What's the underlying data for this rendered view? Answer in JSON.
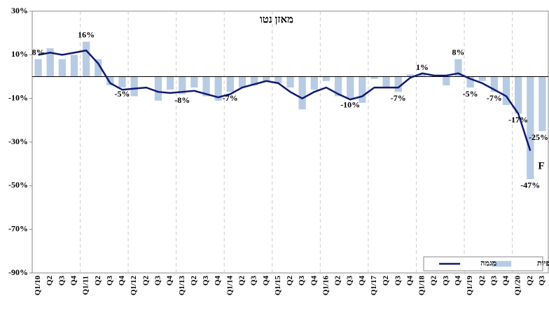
{
  "chart_data": {
    "type": "combo",
    "title": "מאזן נטו",
    "categories": [
      "Q1/10",
      "Q2",
      "Q3",
      "Q4",
      "Q1/11",
      "Q2",
      "Q3",
      "Q4",
      "Q1/12",
      "Q2",
      "Q3",
      "Q4",
      "Q1/13",
      "Q2",
      "Q3",
      "Q4",
      "Q1/14",
      "Q2",
      "Q3",
      "Q4",
      "Q1/15",
      "Q2",
      "Q3",
      "Q4",
      "Q1/16",
      "Q2",
      "Q3",
      "Q4",
      "Q1/17",
      "Q2",
      "Q3",
      "Q4",
      "Q1/18",
      "Q2",
      "Q3",
      "Q4",
      "Q1/19",
      "Q2",
      "Q3",
      "Q4",
      "Q1/20",
      "Q2",
      "Q3"
    ],
    "series": [
      {
        "name": "תצפיות",
        "type": "bar",
        "color": "#b7cbe4",
        "values": [
          8,
          13,
          8,
          10,
          16,
          8,
          -4,
          -5,
          -9,
          0,
          -11,
          -6,
          -8,
          -5,
          -9,
          -11,
          -7,
          -5,
          -4,
          -2,
          -3,
          -5,
          -15,
          -6,
          -2,
          -9,
          -10,
          -12,
          -1,
          -5,
          -7,
          1,
          1,
          0,
          -4,
          8,
          -5,
          -2,
          -7,
          -13,
          -17,
          -47,
          -25
        ],
        "value_labels": [
          "8%",
          null,
          null,
          null,
          "16%",
          null,
          null,
          "-5%",
          null,
          null,
          null,
          null,
          "-8%",
          null,
          null,
          null,
          "-7%",
          null,
          null,
          null,
          null,
          null,
          null,
          null,
          null,
          null,
          "-10%",
          null,
          null,
          null,
          "-7%",
          null,
          "1%",
          null,
          null,
          "8%",
          "-5%",
          null,
          "-7%",
          null,
          "-17%",
          "-47%",
          "-25%"
        ]
      },
      {
        "name": "מגמה",
        "type": "line",
        "color": "#0f1a72",
        "values": [
          10,
          11,
          10,
          11,
          12,
          6,
          -3,
          -6,
          -5.5,
          -5,
          -7,
          -7.5,
          -7,
          -6.5,
          -8,
          -9.5,
          -8,
          -5,
          -3.5,
          -2,
          -3,
          -7,
          -10,
          -7,
          -5,
          -8,
          -10.5,
          -9,
          -5,
          -5,
          -5,
          -0.5,
          1.5,
          0.5,
          0.5,
          1.5,
          -1,
          -3,
          -6,
          -9,
          -17,
          -34,
          null
        ]
      }
    ],
    "annotations": [
      "F"
    ],
    "ylim": [
      -90,
      30
    ],
    "yticks": [
      {
        "value": -90,
        "label": "-90%"
      },
      {
        "value": -70,
        "label": "-70%"
      },
      {
        "value": -50,
        "label": "-50%"
      },
      {
        "value": -30,
        "label": "-30%"
      },
      {
        "value": -10,
        "label": "-10%"
      },
      {
        "value": 10,
        "label": "10%"
      },
      {
        "value": 30,
        "label": "30%"
      }
    ],
    "legend": "lower right"
  }
}
